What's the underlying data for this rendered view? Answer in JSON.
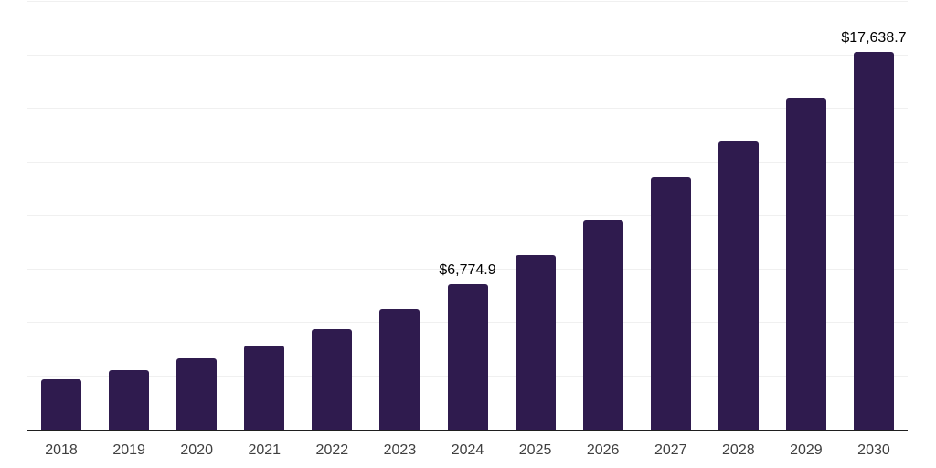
{
  "chart_data": {
    "type": "bar",
    "title": "",
    "xlabel": "",
    "ylabel": "",
    "categories": [
      "2018",
      "2019",
      "2020",
      "2021",
      "2022",
      "2023",
      "2024",
      "2025",
      "2026",
      "2027",
      "2028",
      "2029",
      "2030"
    ],
    "values": [
      2370,
      2780,
      3320,
      3920,
      4700,
      5650,
      6774.9,
      8160,
      9790,
      11800,
      13490,
      15530,
      17638.7
    ],
    "point_labels": {
      "2024": "$6,774.9",
      "2030": "$17,638.7"
    },
    "ylim": [
      0,
      20000
    ],
    "gridline_step": 2500,
    "grid": "horizontal",
    "legend": "none",
    "y_axis_labels": "none",
    "bar_color": "#2f1b4e",
    "axis_line_color": "#1f1f1f",
    "gridline_color": "#f0f0f0",
    "value_label_color": "#000000",
    "tick_label_color": "#3f3f3f"
  }
}
